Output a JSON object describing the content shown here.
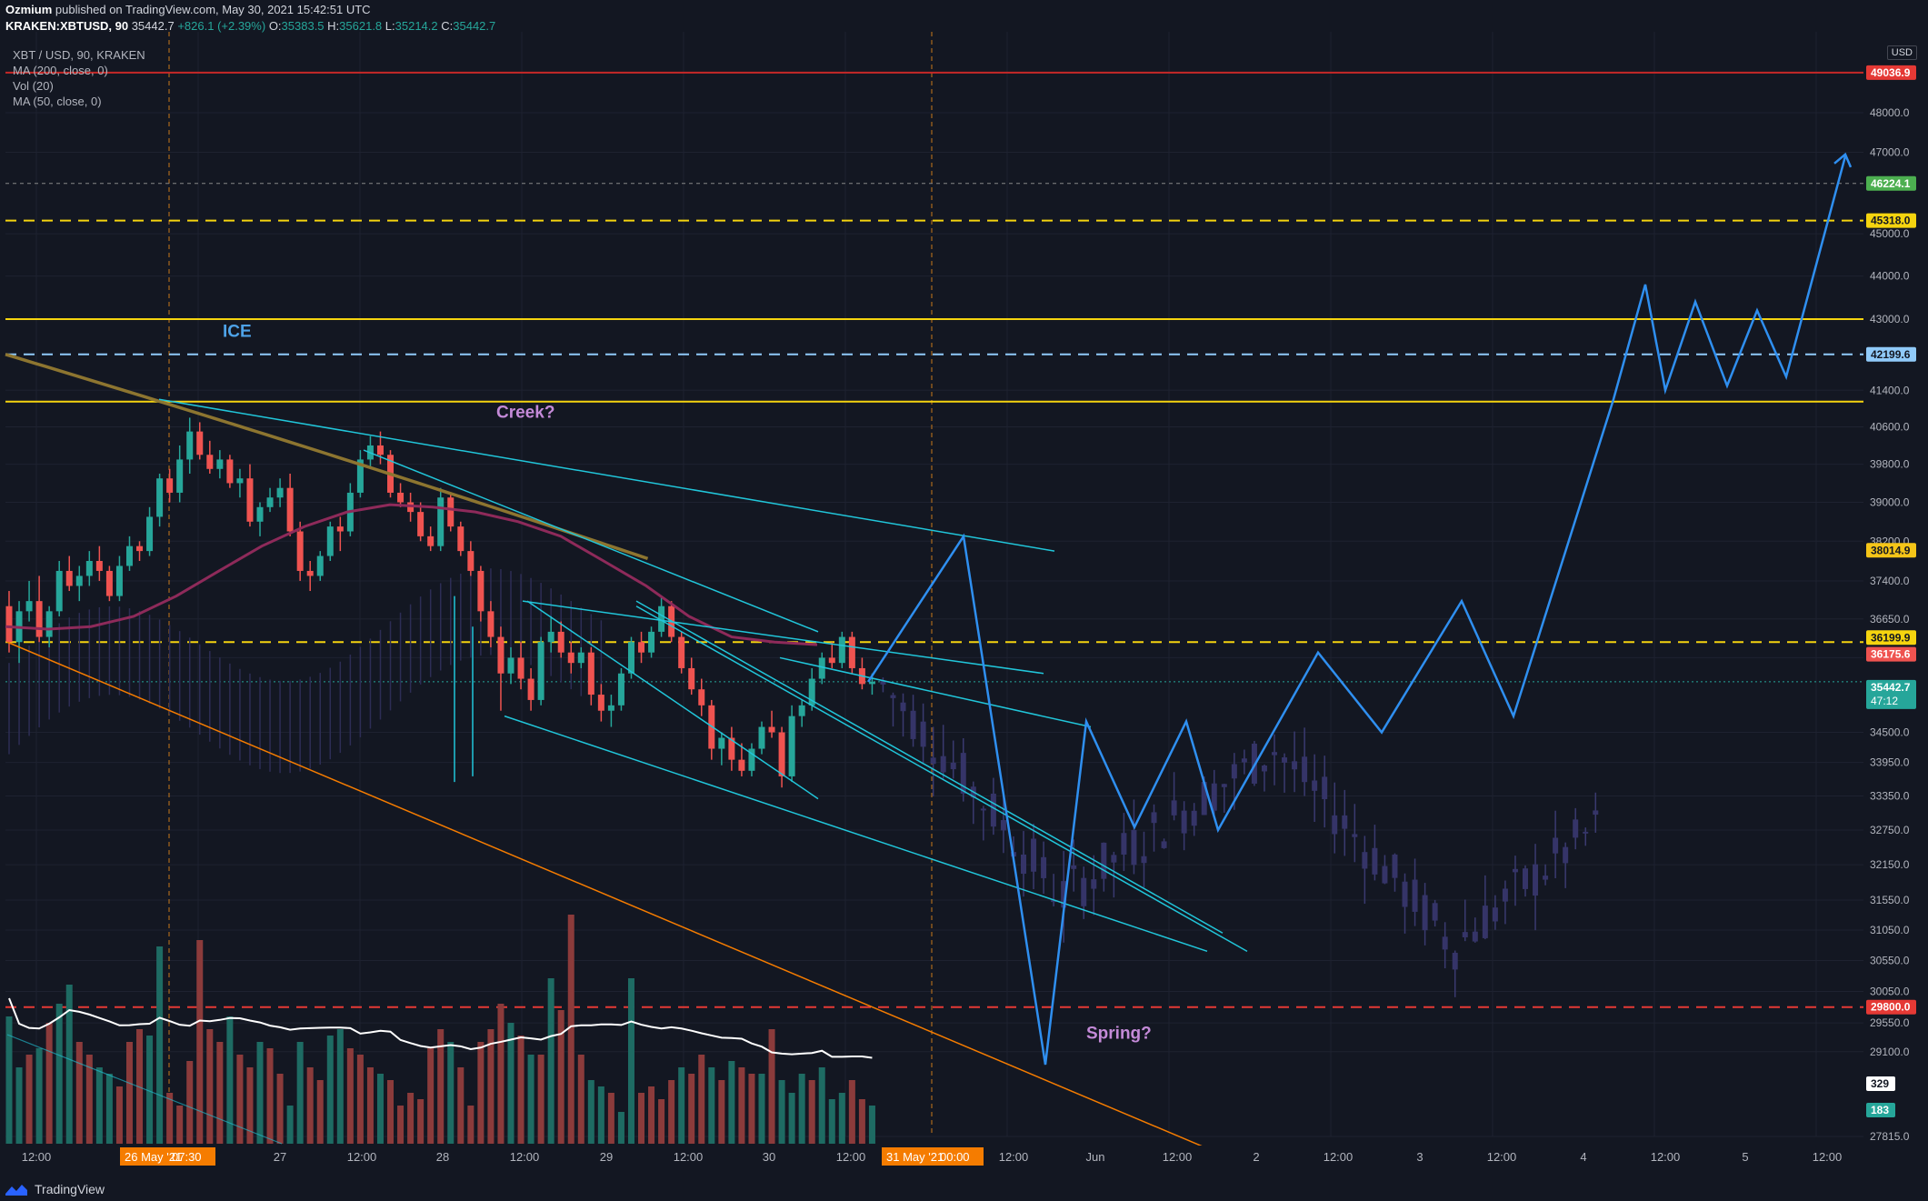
{
  "header": {
    "author": "Ozmium",
    "published": "published on TradingView.com, May 30, 2021 15:42:51 UTC",
    "symbol": "KRAKEN:XBTUSD, 90",
    "last": "35442.7",
    "change": "+826.1 (+2.39%)",
    "o_label": "O:",
    "o_value": "35383.5",
    "h_label": "H:",
    "h_value": "35621.8",
    "l_label": "L:",
    "l_value": "35214.2",
    "c_label": "C:",
    "c_value": "35442.7"
  },
  "legend": {
    "title": "XBT / USD, 90, KRAKEN",
    "items": [
      "MA (200, close, 0)",
      "Vol (20)",
      "MA (50, close, 0)"
    ]
  },
  "currency": "USD",
  "footer": {
    "brand": "TradingView"
  },
  "colors": {
    "background": "#131722",
    "up": "#26a69a",
    "down": "#ef5350",
    "projection": "#2f8ff0",
    "trendline": "#21c6da",
    "yellow": "#f5d40f",
    "ma200": "#8d7530",
    "ma50": "#8e2a5a",
    "vol_ma": "#ffffff"
  },
  "annotations": [
    {
      "text": "ICE",
      "color": "#4ea3e8"
    },
    {
      "text": "Creek?",
      "color": "#c48ad8"
    },
    {
      "text": "Spring?",
      "color": "#c48ad8"
    }
  ],
  "chart_data": {
    "type": "candlestick",
    "y_axis_ticks": [
      "48000.0",
      "47000.0",
      "45000.0",
      "44000.0",
      "43000.0",
      "41400.0",
      "40600.0",
      "39800.0",
      "39000.0",
      "38200.0",
      "37400.0",
      "36650.0",
      "35900.0",
      "34500.0",
      "33950.0",
      "33350.0",
      "32750.0",
      "32150.0",
      "31550.0",
      "31050.0",
      "30550.0",
      "30050.0",
      "29550.0",
      "29100.0",
      "27815.0"
    ],
    "y_axis_scale": "log",
    "x_axis_ticks": [
      "12:00",
      "26 May '21",
      "07:30",
      "27",
      "12:00",
      "28",
      "12:00",
      "29",
      "12:00",
      "30",
      "12:00",
      "31 May '21",
      "00:00",
      "12:00",
      "Jun",
      "12:00",
      "2",
      "12:00",
      "3",
      "12:00",
      "4",
      "12:00",
      "5",
      "12:00"
    ],
    "price_badges": [
      {
        "value": "49036.9",
        "color": "#e53935",
        "kind": "line"
      },
      {
        "value": "46224.1",
        "color": "#4caf50",
        "kind": "dashed"
      },
      {
        "value": "45318.0",
        "color": "#f5d40f",
        "kind": "yellow-dashed"
      },
      {
        "value": "42199.6",
        "color": "#90caf9",
        "kind": "dashed"
      },
      {
        "value": "38014.9",
        "color": "#f5c518",
        "kind": "ma"
      },
      {
        "value": "36199.9",
        "color": "#f5d40f",
        "kind": "yellow-dashed"
      },
      {
        "value": "36175.6",
        "color": "#ef5350",
        "kind": "ma"
      },
      {
        "value": "35442.7",
        "sub": "47:12",
        "color": "#26a69a",
        "kind": "last"
      },
      {
        "value": "29800.0",
        "color": "#e53935",
        "kind": "red-dashed"
      },
      {
        "value": "329",
        "color": "#ffffff",
        "kind": "vol-ma"
      },
      {
        "value": "183",
        "color": "#26a69a",
        "kind": "vol"
      }
    ],
    "horizontal_levels": [
      {
        "value": 49036.9,
        "style": "solid",
        "color": "#c62828"
      },
      {
        "value": 46224.1,
        "style": "dotted",
        "color": "#888888"
      },
      {
        "value": 45318.0,
        "style": "dashed",
        "color": "#f5d40f"
      },
      {
        "value": 43000.0,
        "style": "solid",
        "color": "#f5d40f"
      },
      {
        "value": 42199.6,
        "style": "dashed",
        "color": "#90caf9"
      },
      {
        "value": 41150.0,
        "style": "solid",
        "color": "#f5d40f"
      },
      {
        "value": 36199.9,
        "style": "dashed",
        "color": "#f5d40f"
      },
      {
        "value": 29800.0,
        "style": "dashed",
        "color": "#e53935"
      }
    ],
    "candles": [
      [
        36900,
        37200,
        36000,
        36200
      ],
      [
        36200,
        37000,
        35800,
        36800
      ],
      [
        36800,
        37400,
        36600,
        37000
      ],
      [
        37000,
        37500,
        36200,
        36300
      ],
      [
        36300,
        36900,
        36100,
        36800
      ],
      [
        36800,
        37800,
        36700,
        37600
      ],
      [
        37600,
        37900,
        37200,
        37300
      ],
      [
        37300,
        37700,
        37000,
        37500
      ],
      [
        37500,
        38000,
        37300,
        37800
      ],
      [
        37800,
        38100,
        37400,
        37600
      ],
      [
        37600,
        37700,
        37000,
        37100
      ],
      [
        37100,
        37900,
        37000,
        37700
      ],
      [
        37700,
        38300,
        37600,
        38100
      ],
      [
        38100,
        38200,
        37800,
        38000
      ],
      [
        38000,
        38900,
        37900,
        38700
      ],
      [
        38700,
        39600,
        38500,
        39500
      ],
      [
        39500,
        39700,
        39000,
        39200
      ],
      [
        39200,
        40200,
        39000,
        39900
      ],
      [
        39900,
        40800,
        39600,
        40500
      ],
      [
        40500,
        40700,
        39900,
        40000
      ],
      [
        40000,
        40300,
        39600,
        39700
      ],
      [
        39700,
        40100,
        39500,
        39900
      ],
      [
        39900,
        40000,
        39300,
        39400
      ],
      [
        39400,
        39700,
        39100,
        39500
      ],
      [
        39500,
        39800,
        38500,
        38600
      ],
      [
        38600,
        39000,
        38300,
        38900
      ],
      [
        38900,
        39300,
        38800,
        39100
      ],
      [
        39100,
        39500,
        38900,
        39300
      ],
      [
        39300,
        39600,
        38300,
        38400
      ],
      [
        38400,
        38600,
        37400,
        37600
      ],
      [
        37600,
        37800,
        37200,
        37500
      ],
      [
        37500,
        38000,
        37400,
        37900
      ],
      [
        37900,
        38600,
        37800,
        38500
      ],
      [
        38500,
        38700,
        38000,
        38400
      ],
      [
        38400,
        39400,
        38300,
        39200
      ],
      [
        39200,
        40100,
        39100,
        39900
      ],
      [
        39900,
        40400,
        39700,
        40200
      ],
      [
        40200,
        40500,
        39800,
        40000
      ],
      [
        40000,
        40100,
        39100,
        39200
      ],
      [
        39200,
        39400,
        38900,
        39000
      ],
      [
        39000,
        39200,
        38600,
        38800
      ],
      [
        38800,
        39000,
        38200,
        38300
      ],
      [
        38300,
        38500,
        38000,
        38100
      ],
      [
        38100,
        39300,
        38000,
        39100
      ],
      [
        39100,
        39200,
        38400,
        38500
      ],
      [
        38500,
        38600,
        37900,
        38000
      ],
      [
        38000,
        38200,
        37500,
        37600
      ],
      [
        37600,
        37700,
        36600,
        36800
      ],
      [
        36800,
        37000,
        36100,
        36300
      ],
      [
        36300,
        36500,
        34900,
        35600
      ],
      [
        35600,
        36100,
        35400,
        35900
      ],
      [
        35900,
        36200,
        35300,
        35500
      ],
      [
        35500,
        35700,
        34900,
        35100
      ],
      [
        35100,
        36300,
        35000,
        36200
      ],
      [
        36200,
        36700,
        36000,
        36400
      ],
      [
        36400,
        36600,
        35900,
        36000
      ],
      [
        36000,
        36200,
        35600,
        35800
      ],
      [
        35800,
        36100,
        35700,
        36000
      ],
      [
        36000,
        36100,
        35000,
        35200
      ],
      [
        35200,
        35400,
        34700,
        34900
      ],
      [
        34900,
        35200,
        34600,
        35000
      ],
      [
        35000,
        35700,
        34900,
        35600
      ],
      [
        35600,
        36300,
        35500,
        36200
      ],
      [
        36200,
        36400,
        35800,
        36000
      ],
      [
        36000,
        36500,
        35900,
        36400
      ],
      [
        36400,
        37100,
        36300,
        36900
      ],
      [
        36900,
        37000,
        36200,
        36300
      ],
      [
        36300,
        36400,
        35600,
        35700
      ],
      [
        35700,
        35900,
        35200,
        35300
      ],
      [
        35300,
        35500,
        34800,
        35000
      ],
      [
        35000,
        35100,
        34000,
        34200
      ],
      [
        34200,
        34500,
        33900,
        34400
      ],
      [
        34400,
        34600,
        33800,
        34000
      ],
      [
        34000,
        34300,
        33700,
        33800
      ],
      [
        33800,
        34300,
        33700,
        34200
      ],
      [
        34200,
        34700,
        34100,
        34600
      ],
      [
        34600,
        34900,
        34400,
        34500
      ],
      [
        34500,
        34600,
        33500,
        33700
      ],
      [
        33700,
        35000,
        33600,
        34800
      ],
      [
        34800,
        35100,
        34600,
        35000
      ],
      [
        35000,
        35700,
        34900,
        35500
      ],
      [
        35500,
        36000,
        35400,
        35900
      ],
      [
        35900,
        36200,
        35700,
        35800
      ],
      [
        35800,
        36400,
        35700,
        36300
      ],
      [
        36300,
        36400,
        35600,
        35700
      ],
      [
        35700,
        35900,
        35300,
        35400
      ],
      [
        35400,
        35600,
        35200,
        35442.7
      ]
    ],
    "volumes": [
      [
        1.0,
        "up"
      ],
      [
        0.6,
        "up"
      ],
      [
        0.7,
        "down"
      ],
      [
        0.75,
        "up"
      ],
      [
        0.95,
        "down"
      ],
      [
        1.1,
        "up"
      ],
      [
        1.25,
        "up"
      ],
      [
        0.8,
        "down"
      ],
      [
        0.7,
        "down"
      ],
      [
        0.6,
        "up"
      ],
      [
        0.55,
        "up"
      ],
      [
        0.45,
        "down"
      ],
      [
        0.8,
        "down"
      ],
      [
        0.9,
        "down"
      ],
      [
        0.85,
        "up"
      ],
      [
        1.55,
        "up"
      ],
      [
        0.4,
        "down"
      ],
      [
        0.3,
        "down"
      ],
      [
        0.65,
        "down"
      ],
      [
        1.6,
        "down"
      ],
      [
        0.9,
        "down"
      ],
      [
        0.8,
        "down"
      ],
      [
        1.0,
        "up"
      ],
      [
        0.7,
        "down"
      ],
      [
        0.6,
        "down"
      ],
      [
        0.8,
        "up"
      ],
      [
        0.75,
        "down"
      ],
      [
        0.55,
        "down"
      ],
      [
        0.3,
        "up"
      ],
      [
        0.8,
        "up"
      ],
      [
        0.6,
        "down"
      ],
      [
        0.5,
        "down"
      ],
      [
        0.85,
        "up"
      ],
      [
        0.9,
        "up"
      ],
      [
        0.75,
        "down"
      ],
      [
        0.7,
        "down"
      ],
      [
        0.6,
        "down"
      ],
      [
        0.55,
        "up"
      ],
      [
        0.5,
        "down"
      ],
      [
        0.3,
        "down"
      ],
      [
        0.4,
        "down"
      ],
      [
        0.35,
        "down"
      ],
      [
        0.75,
        "down"
      ],
      [
        0.9,
        "down"
      ],
      [
        0.8,
        "up"
      ],
      [
        0.6,
        "down"
      ],
      [
        0.3,
        "down"
      ],
      [
        0.8,
        "down"
      ],
      [
        0.9,
        "down"
      ],
      [
        1.1,
        "down"
      ],
      [
        0.95,
        "up"
      ],
      [
        0.85,
        "down"
      ],
      [
        0.7,
        "up"
      ],
      [
        0.7,
        "down"
      ],
      [
        1.3,
        "up"
      ],
      [
        1.05,
        "down"
      ],
      [
        1.8,
        "down"
      ],
      [
        0.7,
        "down"
      ],
      [
        0.5,
        "up"
      ],
      [
        0.45,
        "up"
      ],
      [
        0.4,
        "down"
      ],
      [
        0.25,
        "up"
      ],
      [
        1.3,
        "up"
      ],
      [
        0.4,
        "down"
      ],
      [
        0.45,
        "down"
      ],
      [
        0.35,
        "down"
      ],
      [
        0.5,
        "down"
      ],
      [
        0.6,
        "up"
      ],
      [
        0.55,
        "down"
      ],
      [
        0.7,
        "down"
      ],
      [
        0.6,
        "up"
      ],
      [
        0.5,
        "down"
      ],
      [
        0.65,
        "up"
      ],
      [
        0.6,
        "down"
      ],
      [
        0.55,
        "down"
      ],
      [
        0.55,
        "up"
      ],
      [
        0.9,
        "down"
      ],
      [
        0.5,
        "up"
      ],
      [
        0.4,
        "up"
      ],
      [
        0.55,
        "up"
      ],
      [
        0.5,
        "down"
      ],
      [
        0.6,
        "up"
      ],
      [
        0.35,
        "up"
      ],
      [
        0.4,
        "up"
      ],
      [
        0.5,
        "down"
      ],
      [
        0.35,
        "down"
      ],
      [
        0.3,
        "up"
      ]
    ],
    "projection_path": [
      [
        35442.7,
        0
      ],
      [
        38300,
        1
      ],
      [
        28900,
        2
      ],
      [
        34700,
        3
      ],
      [
        32800,
        4
      ],
      [
        34700,
        5
      ],
      [
        32750,
        6
      ],
      [
        36000,
        7
      ],
      [
        34500,
        8
      ],
      [
        37000,
        9
      ],
      [
        34800,
        10
      ],
      [
        41200,
        11
      ],
      [
        43800,
        12
      ],
      [
        41400,
        13
      ],
      [
        43400,
        14
      ],
      [
        41500,
        15
      ],
      [
        43200,
        16
      ],
      [
        41700,
        17
      ],
      [
        46900,
        18
      ]
    ]
  }
}
